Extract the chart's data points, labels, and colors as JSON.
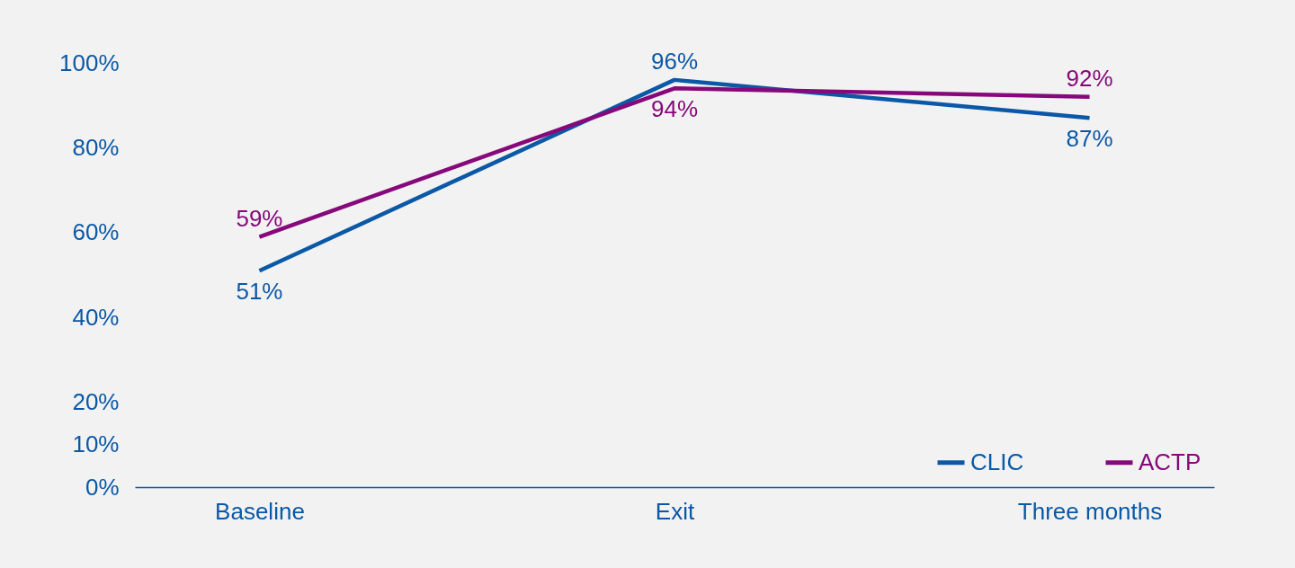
{
  "chart_data": {
    "type": "line",
    "categories": [
      "Baseline",
      "Exit",
      "Three months"
    ],
    "series": [
      {
        "name": "CLIC",
        "color": "#0a58a6",
        "values": [
          51,
          96,
          87
        ],
        "value_labels": [
          "51%",
          "96%",
          "87%"
        ]
      },
      {
        "name": "ACTP",
        "color": "#87087a",
        "values": [
          59,
          94,
          92
        ],
        "value_labels": [
          "59%",
          "94%",
          "92%"
        ]
      }
    ],
    "ylim": [
      0,
      100
    ],
    "yticks": [
      {
        "value": 0,
        "label": "0%"
      },
      {
        "value": 10,
        "label": "10%"
      },
      {
        "value": 20,
        "label": "20%"
      },
      {
        "value": 40,
        "label": "40%"
      },
      {
        "value": 60,
        "label": "60%"
      },
      {
        "value": 80,
        "label": "80%"
      },
      {
        "value": 100,
        "label": "100%"
      }
    ],
    "grid": false,
    "legend": "bottom right",
    "marker": "none",
    "line_style": "solid"
  }
}
